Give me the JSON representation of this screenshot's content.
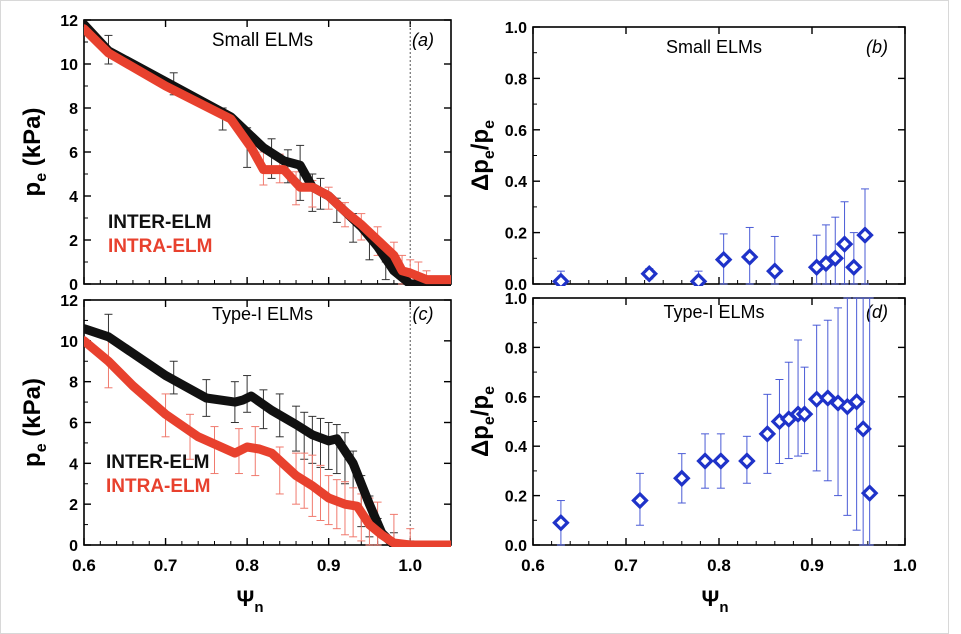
{
  "colors": {
    "inter": "#111111",
    "intra": "#e8412e",
    "intra_err": "#f07a6e",
    "diamond": "#1f33c9",
    "diamond_err": "#4a5bd6",
    "axis": "#000000",
    "frame": "#cfcfcf"
  },
  "x_axis_label": {
    "main": "Ψ",
    "sub": "n"
  },
  "chart_data": [
    {
      "id": "a",
      "type": "line",
      "title": "Small ELMs",
      "panel_label": "(a)",
      "ylabel": {
        "main": "p",
        "sub": "e",
        "rest": " (kPa)"
      },
      "xlim": [
        0.6,
        1.05
      ],
      "ylim": [
        0,
        12
      ],
      "xticks": [
        0.6,
        0.7,
        0.8,
        0.9,
        1.0
      ],
      "yticks": [
        0,
        2,
        4,
        6,
        8,
        10,
        12
      ],
      "vline": 1.0,
      "legend": [
        "INTER-ELM",
        "INTRA-ELM"
      ],
      "series": [
        {
          "name": "INTER-ELM",
          "x": [
            0.6,
            0.63,
            0.7,
            0.78,
            0.82,
            0.845,
            0.865,
            0.88,
            0.9,
            0.92,
            0.94,
            0.96,
            0.98,
            1.0,
            1.02,
            1.05
          ],
          "y": [
            11.8,
            10.6,
            9.2,
            7.6,
            6.2,
            5.6,
            5.4,
            4.4,
            4.0,
            3.3,
            2.6,
            1.7,
            0.6,
            0.0,
            0.0,
            0.0
          ]
        },
        {
          "name": "INTRA-ELM",
          "x": [
            0.6,
            0.63,
            0.7,
            0.78,
            0.805,
            0.82,
            0.845,
            0.865,
            0.88,
            0.9,
            0.92,
            0.94,
            0.96,
            0.98,
            0.99,
            1.0,
            1.02,
            1.05
          ],
          "y": [
            11.6,
            10.5,
            9.0,
            7.5,
            6.2,
            5.2,
            5.2,
            4.4,
            4.4,
            4.0,
            3.3,
            2.7,
            2.0,
            1.3,
            0.6,
            0.5,
            0.2,
            0.2
          ]
        }
      ],
      "errorbars": [
        {
          "series": "INTER-ELM",
          "x": [
            0.63,
            0.71,
            0.77,
            0.8,
            0.83,
            0.85,
            0.865,
            0.88,
            0.89,
            0.91,
            0.93,
            0.95,
            0.97,
            1.0,
            1.01,
            1.02
          ],
          "lo": [
            10.0,
            8.6,
            7.0,
            5.3,
            4.8,
            4.6,
            3.8,
            3.3,
            3.4,
            2.8,
            1.9,
            1.1,
            0.2,
            0.0,
            0.0,
            0.0
          ],
          "hi": [
            11.3,
            9.6,
            8.0,
            7.1,
            6.6,
            6.1,
            6.3,
            5.0,
            4.8,
            3.9,
            3.2,
            2.3,
            1.0,
            0.0,
            0.0,
            0.0
          ]
        },
        {
          "series": "INTRA-ELM",
          "x": [
            0.82,
            0.84,
            0.86,
            0.88,
            0.9,
            0.92,
            0.94,
            0.96,
            0.98,
            0.99,
            1.0,
            1.01,
            1.02
          ],
          "lo": [
            4.5,
            4.6,
            3.6,
            3.5,
            3.4,
            2.6,
            2.0,
            1.3,
            0.7,
            0.0,
            0.0,
            0.0,
            0.0
          ],
          "hi": [
            6.0,
            5.9,
            5.1,
            4.7,
            4.4,
            3.7,
            3.2,
            2.6,
            1.9,
            1.3,
            1.1,
            1.0,
            0.6
          ]
        }
      ]
    },
    {
      "id": "b",
      "type": "scatter",
      "title": "Small ELMs",
      "panel_label": "(b)",
      "ylabel": {
        "main": "Δp",
        "sub": "e",
        "rest": "/p",
        "sub2": "e"
      },
      "xlim": [
        0.6,
        1.0
      ],
      "ylim": [
        0,
        1.0
      ],
      "xticks": [
        0.6,
        0.7,
        0.8,
        0.9,
        1.0
      ],
      "yticks": [
        0.0,
        0.2,
        0.4,
        0.6,
        0.8,
        1.0
      ],
      "tick_labels": [
        "0.0",
        "0.2",
        "0.4",
        "0.6",
        "0.8",
        "1.0"
      ],
      "points": {
        "x": [
          0.63,
          0.725,
          0.778,
          0.805,
          0.833,
          0.86,
          0.905,
          0.915,
          0.925,
          0.935,
          0.945,
          0.957
        ],
        "y": [
          0.01,
          0.04,
          0.01,
          0.095,
          0.105,
          0.05,
          0.065,
          0.08,
          0.1,
          0.155,
          0.065,
          0.19
        ],
        "lo": [
          -0.03,
          0.02,
          -0.03,
          0.0,
          0.0,
          -0.08,
          -0.05,
          -0.05,
          -0.04,
          0.0,
          -0.06,
          0.0
        ],
        "hi": [
          0.05,
          0.06,
          0.05,
          0.195,
          0.22,
          0.185,
          0.19,
          0.23,
          0.26,
          0.32,
          0.2,
          0.37
        ]
      }
    },
    {
      "id": "c",
      "type": "line",
      "title": "Type-I ELMs",
      "panel_label": "(c)",
      "ylabel": {
        "main": "p",
        "sub": "e",
        "rest": " (kPa)"
      },
      "xlim": [
        0.6,
        1.05
      ],
      "ylim": [
        0,
        12
      ],
      "xticks": [
        0.6,
        0.7,
        0.8,
        0.9,
        1.0
      ],
      "xtick_labels": [
        "0.6",
        "0.7",
        "0.8",
        "0.9",
        "1.0"
      ],
      "yticks": [
        0,
        2,
        4,
        6,
        8,
        10,
        12
      ],
      "vline": 1.0,
      "legend": [
        "INTER-ELM",
        "INTRA-ELM"
      ],
      "series": [
        {
          "name": "INTER-ELM",
          "x": [
            0.6,
            0.63,
            0.7,
            0.75,
            0.785,
            0.795,
            0.805,
            0.83,
            0.86,
            0.88,
            0.9,
            0.91,
            0.93,
            0.95,
            0.965,
            0.98,
            1.0,
            1.05
          ],
          "y": [
            10.6,
            10.2,
            8.3,
            7.2,
            7.0,
            7.1,
            7.3,
            6.6,
            5.9,
            5.4,
            5.1,
            5.2,
            4.0,
            2.0,
            0.6,
            0.0,
            0.0,
            0.0
          ]
        },
        {
          "name": "INTRA-ELM",
          "x": [
            0.6,
            0.63,
            0.66,
            0.7,
            0.74,
            0.785,
            0.8,
            0.815,
            0.83,
            0.86,
            0.88,
            0.9,
            0.92,
            0.935,
            0.95,
            0.965,
            0.98,
            1.0,
            1.05
          ],
          "y": [
            10.0,
            9.0,
            7.8,
            6.4,
            5.3,
            4.5,
            4.8,
            4.7,
            4.5,
            3.4,
            2.9,
            2.3,
            2.0,
            1.9,
            1.0,
            0.5,
            0.1,
            0.0,
            0.0
          ]
        }
      ],
      "errorbars": [
        {
          "series": "INTER-ELM",
          "x": [
            0.63,
            0.71,
            0.75,
            0.785,
            0.8,
            0.82,
            0.84,
            0.86,
            0.87,
            0.88,
            0.89,
            0.9,
            0.91,
            0.92,
            0.93,
            0.94,
            0.95,
            0.96,
            0.98,
            1.0
          ],
          "lo": [
            9.0,
            7.4,
            6.3,
            6.0,
            6.5,
            5.7,
            5.3,
            4.6,
            4.2,
            4.0,
            3.8,
            3.7,
            3.5,
            3.0,
            2.0,
            0.9,
            0.4,
            0.0,
            0.0,
            0.0
          ],
          "hi": [
            11.3,
            9.0,
            8.1,
            8.0,
            8.3,
            7.6,
            7.4,
            6.8,
            6.5,
            6.3,
            6.2,
            6.0,
            5.9,
            5.5,
            4.6,
            3.4,
            2.4,
            1.3,
            0.6,
            0.2
          ]
        },
        {
          "series": "INTRA-ELM",
          "x": [
            0.63,
            0.7,
            0.73,
            0.76,
            0.79,
            0.81,
            0.84,
            0.86,
            0.87,
            0.88,
            0.89,
            0.9,
            0.91,
            0.92,
            0.93,
            0.94,
            0.95,
            0.96,
            0.98,
            1.0
          ],
          "lo": [
            7.7,
            5.3,
            4.2,
            3.5,
            3.5,
            3.4,
            2.5,
            2.0,
            1.8,
            1.4,
            1.2,
            1.0,
            0.8,
            0.5,
            0.4,
            0.2,
            0.0,
            0.0,
            0.0,
            0.0
          ],
          "hi": [
            10.1,
            7.4,
            6.4,
            5.8,
            5.7,
            5.8,
            4.8,
            4.5,
            4.5,
            4.4,
            3.9,
            3.4,
            3.2,
            3.1,
            2.8,
            2.5,
            2.3,
            2.1,
            1.5,
            0.8
          ]
        }
      ]
    },
    {
      "id": "d",
      "type": "scatter",
      "title": "Type-I ELMs",
      "panel_label": "(d)",
      "ylabel": {
        "main": "Δp",
        "sub": "e",
        "rest": "/p",
        "sub2": "e"
      },
      "xlim": [
        0.6,
        1.0
      ],
      "ylim": [
        0,
        1.0
      ],
      "xticks": [
        0.6,
        0.7,
        0.8,
        0.9,
        1.0
      ],
      "xtick_labels": [
        "0.6",
        "0.7",
        "0.8",
        "0.9",
        "1.0"
      ],
      "yticks": [
        0.0,
        0.2,
        0.4,
        0.6,
        0.8,
        1.0
      ],
      "tick_labels": [
        "0.0",
        "0.2",
        "0.4",
        "0.6",
        "0.8",
        "1.0"
      ],
      "points": {
        "x": [
          0.63,
          0.715,
          0.76,
          0.785,
          0.802,
          0.83,
          0.852,
          0.865,
          0.875,
          0.885,
          0.892,
          0.905,
          0.917,
          0.928,
          0.938,
          0.948,
          0.955,
          0.962
        ],
        "y": [
          0.09,
          0.18,
          0.27,
          0.34,
          0.34,
          0.34,
          0.45,
          0.5,
          0.51,
          0.53,
          0.53,
          0.59,
          0.595,
          0.575,
          0.56,
          0.58,
          0.47,
          0.21
        ],
        "lo": [
          0.0,
          0.08,
          0.17,
          0.23,
          0.23,
          0.25,
          0.29,
          0.33,
          0.35,
          0.36,
          0.37,
          0.3,
          0.26,
          0.2,
          0.12,
          0.06,
          -0.1,
          -0.1
        ],
        "hi": [
          0.18,
          0.29,
          0.37,
          0.45,
          0.45,
          0.44,
          0.61,
          0.67,
          0.74,
          0.83,
          0.72,
          0.89,
          0.91,
          0.96,
          1.0,
          1.05,
          1.05,
          1.05
        ]
      }
    }
  ]
}
